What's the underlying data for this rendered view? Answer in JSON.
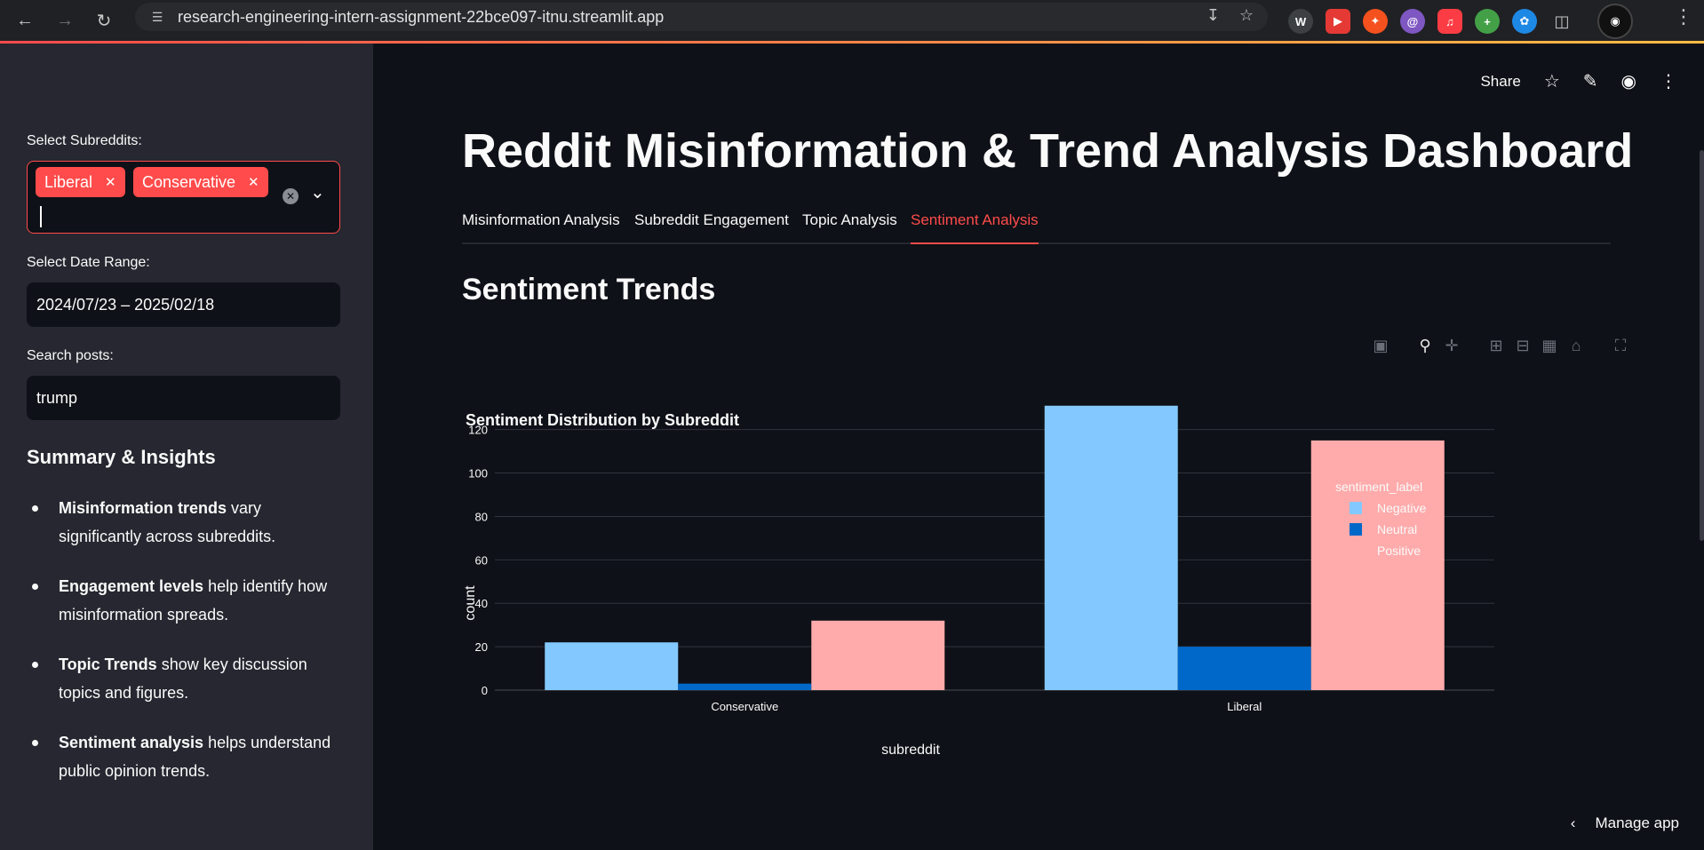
{
  "browser": {
    "url": "research-engineering-intern-assignment-22bce097-itnu.streamlit.app",
    "icons": [
      "back-arrow-icon",
      "forward-arrow-icon",
      "reload-icon",
      "site-settings-icon",
      "install-app-icon",
      "bookmark-star-icon",
      "extensions-icon",
      "profile-avatar-icon",
      "menu-kebab-icon"
    ]
  },
  "sidebar": {
    "subreddits_label": "Select Subreddits:",
    "selected_subreddits": [
      "Liberal",
      "Conservative"
    ],
    "date_label": "Select Date Range:",
    "date_value": "2024/07/23 – 2025/02/18",
    "search_label": "Search posts:",
    "search_value": "trump",
    "summary_heading": "Summary & Insights",
    "insights": [
      {
        "bold": "Misinformation trends",
        "text": " vary significantly across subreddits."
      },
      {
        "bold": "Engagement levels",
        "text": " help identify how misinformation spreads."
      },
      {
        "bold": "Topic Trends",
        "text": " show key discussion topics and figures."
      },
      {
        "bold": "Sentiment analysis",
        "text": " helps understand public opinion trends."
      }
    ]
  },
  "header": {
    "share_label": "Share",
    "manage_app_label": "Manage app"
  },
  "main": {
    "title": "Reddit Misinformation & Trend Analysis Dashboard",
    "tabs": [
      "Misinformation Analysis",
      "Subreddit Engagement",
      "Topic Analysis",
      "Sentiment Analysis"
    ],
    "active_tab": "Sentiment Analysis",
    "section_title": "Sentiment Trends"
  },
  "colors": {
    "accent": "#ff4b4b",
    "negative": "#83c9ff",
    "neutral": "#0068c9",
    "positive": "#ffabab"
  },
  "chart_data": {
    "type": "bar",
    "title": "Sentiment Distribution by Subreddit",
    "xlabel": "subreddit",
    "ylabel": "count",
    "categories": [
      "Conservative",
      "Liberal"
    ],
    "legend_title": "sentiment_label",
    "legend_position": "top-right",
    "grid": true,
    "ylim": [
      0,
      135
    ],
    "yticks": [
      0,
      20,
      40,
      60,
      80,
      100,
      120
    ],
    "series": [
      {
        "name": "Negative",
        "values": [
          22,
          131
        ],
        "color": "#83c9ff"
      },
      {
        "name": "Neutral",
        "values": [
          3,
          20
        ],
        "color": "#0068c9"
      },
      {
        "name": "Positive",
        "values": [
          32,
          115
        ],
        "color": "#ffabab"
      }
    ]
  }
}
